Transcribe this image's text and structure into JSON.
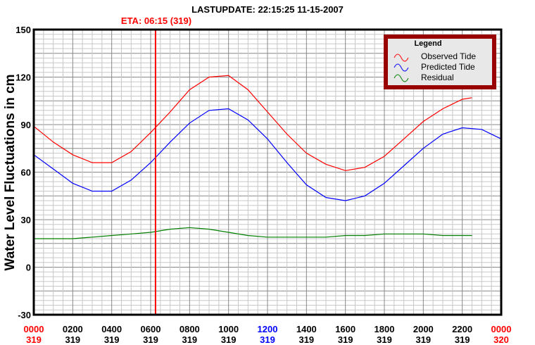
{
  "header": {
    "last_update": "LASTUPDATE: 22:15:25  11-15-2007",
    "eta": "ETA: 06:15 (319)"
  },
  "colors": {
    "observed": "#ff0000",
    "predicted": "#0000ff",
    "residual": "#008000",
    "legend_border": "#990000",
    "eta_line": "#ff0000"
  },
  "chart_data": {
    "type": "line",
    "title": "LASTUPDATE: 22:15:25  11-15-2007",
    "ylabel": "Water Level Fluctuations in cm",
    "xlabel": "",
    "ylim": [
      -30,
      150
    ],
    "xlim": [
      0,
      24
    ],
    "yticks": [
      "150",
      "120",
      "90",
      "60",
      "30",
      "0",
      "-30"
    ],
    "ytick_values": [
      150,
      120,
      90,
      60,
      30,
      0,
      -30
    ],
    "xticks": [
      {
        "time": "0000",
        "day": "319",
        "color": "#ff0000"
      },
      {
        "time": "0200",
        "day": "319",
        "color": "#000000"
      },
      {
        "time": "0400",
        "day": "319",
        "color": "#000000"
      },
      {
        "time": "0600",
        "day": "319",
        "color": "#000000"
      },
      {
        "time": "0800",
        "day": "319",
        "color": "#000000"
      },
      {
        "time": "1000",
        "day": "319",
        "color": "#000000"
      },
      {
        "time": "1200",
        "day": "319",
        "color": "#0000ff"
      },
      {
        "time": "1400",
        "day": "319",
        "color": "#000000"
      },
      {
        "time": "1600",
        "day": "319",
        "color": "#000000"
      },
      {
        "time": "1800",
        "day": "319",
        "color": "#000000"
      },
      {
        "time": "2000",
        "day": "319",
        "color": "#000000"
      },
      {
        "time": "2200",
        "day": "319",
        "color": "#000000"
      },
      {
        "time": "0000",
        "day": "320",
        "color": "#ff0000"
      }
    ],
    "eta_hour": 6.25,
    "grid": true,
    "legend": {
      "title": "Legend",
      "placement": "top-right"
    },
    "series": [
      {
        "name": "Observed Tide",
        "color": "#ff0000",
        "x": [
          0,
          1,
          2,
          3,
          4,
          5,
          6,
          7,
          8,
          9,
          10,
          11,
          12,
          13,
          14,
          15,
          16,
          17,
          18,
          19,
          20,
          21,
          22,
          22.5
        ],
        "values": [
          89,
          79,
          71,
          66,
          66,
          73,
          85,
          98,
          112,
          120,
          121,
          112,
          98,
          84,
          72,
          65,
          61,
          63,
          70,
          81,
          92,
          100,
          106,
          107
        ]
      },
      {
        "name": "Predicted Tide",
        "color": "#0000ff",
        "x": [
          0,
          1,
          2,
          3,
          4,
          5,
          6,
          7,
          8,
          9,
          10,
          11,
          12,
          13,
          14,
          15,
          16,
          17,
          18,
          19,
          20,
          21,
          22,
          23,
          24
        ],
        "values": [
          71,
          62,
          53,
          48,
          48,
          55,
          66,
          79,
          91,
          99,
          100,
          93,
          81,
          66,
          52,
          44,
          42,
          45,
          53,
          64,
          75,
          84,
          88,
          87,
          81
        ]
      },
      {
        "name": "Residual",
        "color": "#008000",
        "x": [
          0,
          1,
          2,
          3,
          4,
          5,
          6,
          7,
          8,
          9,
          10,
          11,
          12,
          13,
          14,
          15,
          16,
          17,
          18,
          19,
          20,
          21,
          22,
          22.5
        ],
        "values": [
          18,
          18,
          18,
          19,
          20,
          21,
          22,
          24,
          25,
          24,
          22,
          20,
          19,
          19,
          19,
          19,
          20,
          20,
          21,
          21,
          21,
          20,
          20,
          20
        ]
      }
    ]
  }
}
